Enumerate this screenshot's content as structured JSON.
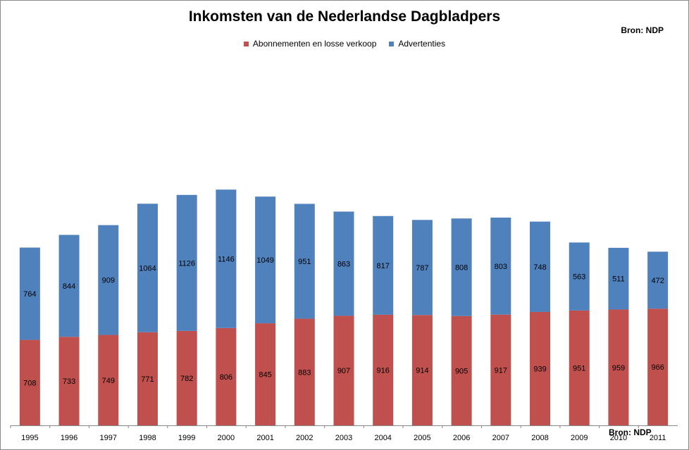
{
  "chart_data": {
    "type": "bar",
    "stacked": true,
    "title": "Inkomsten van de Nederlandse Dagbladpers",
    "source_label": "Bron: NDP",
    "categories": [
      "1995",
      "1996",
      "1997",
      "1998",
      "1999",
      "2000",
      "2001",
      "2002",
      "2003",
      "2004",
      "2005",
      "2006",
      "2007",
      "2008",
      "2009",
      "2010",
      "2011"
    ],
    "series": [
      {
        "name": "Abonnementen en losse verkoop",
        "color": "#c0504d",
        "values": [
          708,
          733,
          749,
          771,
          782,
          806,
          845,
          883,
          907,
          916,
          914,
          905,
          917,
          939,
          951,
          959,
          966
        ]
      },
      {
        "name": "Advertenties",
        "color": "#4f81bd",
        "values": [
          764,
          844,
          909,
          1064,
          1126,
          1146,
          1049,
          951,
          863,
          817,
          787,
          808,
          803,
          748,
          563,
          511,
          472
        ]
      }
    ],
    "ylim": [
      0,
      2200
    ],
    "grid": false,
    "legend_position": "top",
    "data_labels": true
  }
}
